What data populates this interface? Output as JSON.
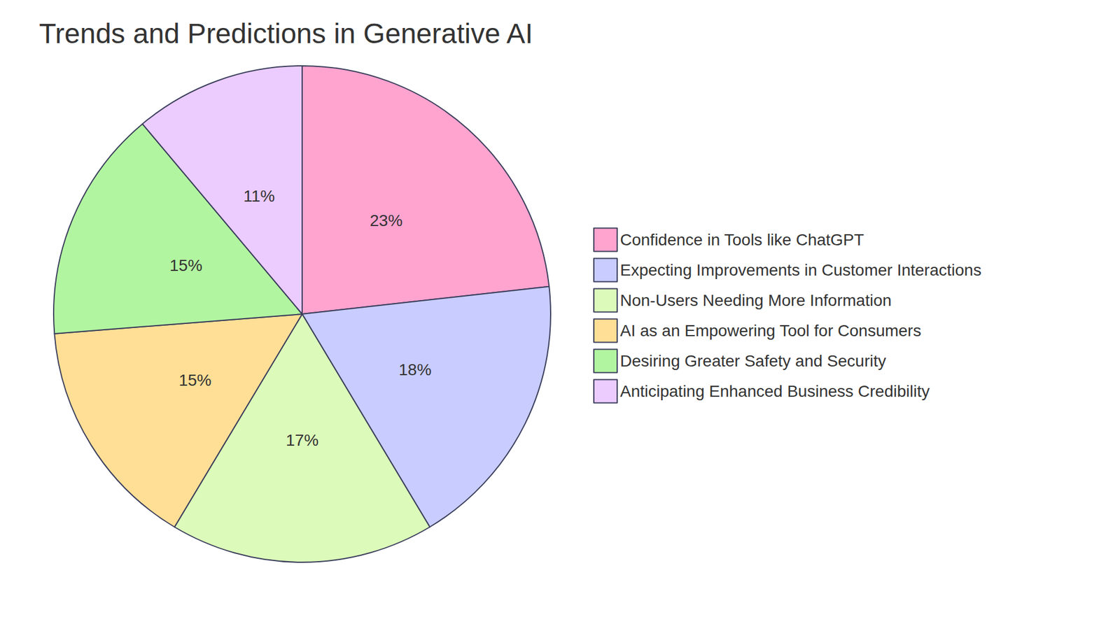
{
  "chart_data": {
    "type": "pie",
    "title": "Trends and Predictions in Generative AI",
    "categories": [
      "Confidence in Tools like ChatGPT",
      "Expecting Improvements in Customer Interactions",
      "Non-Users Needing More Information",
      "AI as an Empowering Tool for Consumers",
      "Desiring Greater Safety and Security",
      "Anticipating Enhanced Business Credibility"
    ],
    "values": [
      23,
      18,
      17,
      15,
      15,
      11
    ],
    "value_labels": [
      "23%",
      "18%",
      "17%",
      "15%",
      "15%",
      "11%"
    ],
    "colors": [
      "#ffa3cf",
      "#c8ccff",
      "#dcfab9",
      "#ffdf95",
      "#b2f5a0",
      "#eccbff"
    ],
    "data_labels": true,
    "legend": "right"
  }
}
